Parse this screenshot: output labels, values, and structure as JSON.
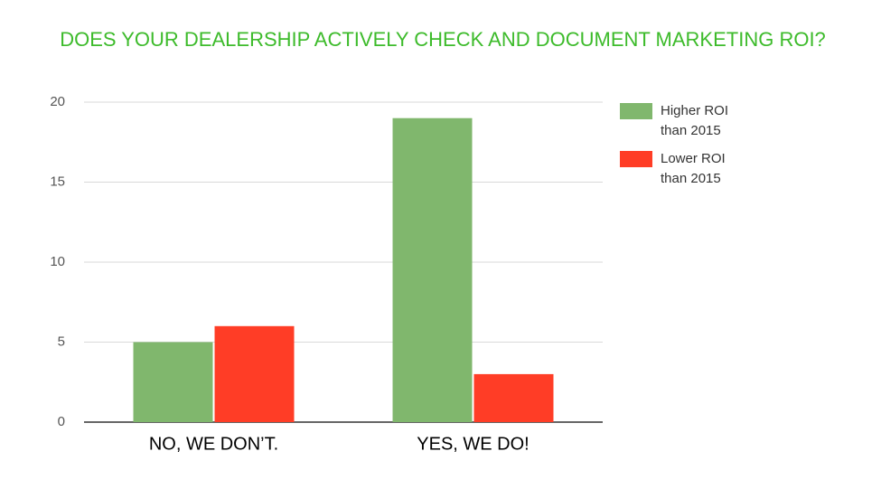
{
  "chart_data": {
    "type": "bar",
    "title": "DOES YOUR DEALERSHIP ACTIVELY CHECK AND DOCUMENT MARKETING ROI?",
    "categories": [
      "NO, WE DON’T.",
      "YES, WE DO!"
    ],
    "series": [
      {
        "name": "Higher ROI than 2015",
        "color": "#80b76d",
        "values": [
          5,
          19
        ]
      },
      {
        "name": "Lower ROI than 2015",
        "color": "#ff3d26",
        "values": [
          6,
          3
        ]
      }
    ],
    "ylim": [
      0,
      20
    ],
    "yticks": [
      0,
      5,
      10,
      15,
      20
    ],
    "grid": true,
    "legend": "right"
  }
}
